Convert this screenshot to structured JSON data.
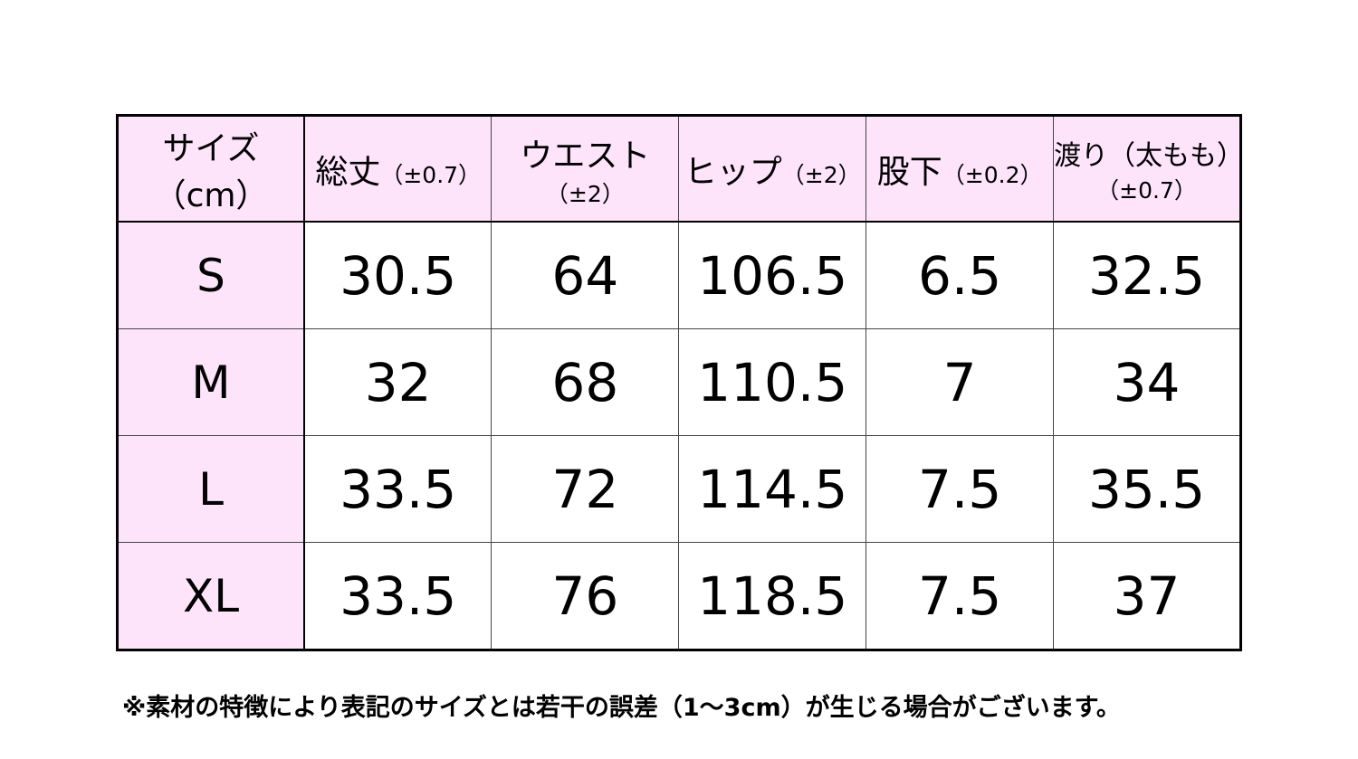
{
  "table": {
    "header": [
      {
        "label": "サイズ（cm）"
      },
      {
        "label": "総丈",
        "note": "（±0.7）"
      },
      {
        "label": "ウエスト",
        "note": "（±2）"
      },
      {
        "label": "ヒップ",
        "note": "（±2）"
      },
      {
        "label": "股下",
        "note": "（±0.2）"
      },
      {
        "label": "渡り（太もも）",
        "note": "（±0.7）"
      }
    ],
    "rows": [
      {
        "size": "S",
        "values": [
          "30.5",
          "64",
          "106.5",
          "6.5",
          "32.5"
        ]
      },
      {
        "size": "M",
        "values": [
          "32",
          "68",
          "110.5",
          "7",
          "34"
        ]
      },
      {
        "size": "L",
        "values": [
          "33.5",
          "72",
          "114.5",
          "7.5",
          "35.5"
        ]
      },
      {
        "size": "XL",
        "values": [
          "33.5",
          "76",
          "118.5",
          "7.5",
          "37"
        ]
      }
    ]
  },
  "footnote": "※素材の特徴により表記のサイズとは若干の誤差（1～3cm）が生じる場合がございます。"
}
